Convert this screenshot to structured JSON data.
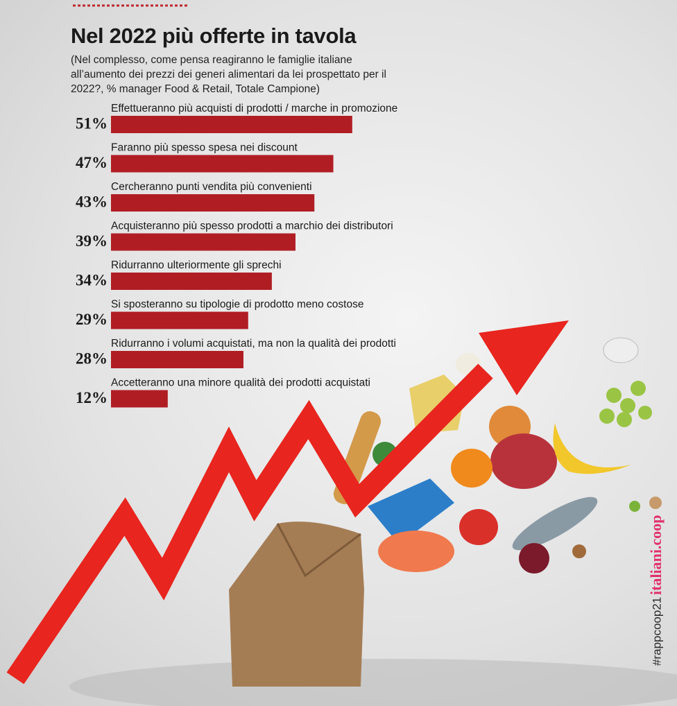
{
  "chart_data": {
    "type": "bar",
    "orientation": "horizontal",
    "title": "Nel 2022 più offerte in tavola",
    "subtitle": "(Nel complesso, come pensa reagiranno le famiglie italiane all’aumento dei prezzi dei generi alimentari da lei prospettato per il 2022?, % manager Food & Retail, Totale Campione)",
    "categories": [
      "Effettueranno più acquisti di prodotti / marche in promozione",
      "Faranno più spesso spesa nei discount",
      "Cercheranno punti vendita più convenienti",
      "Acquisteranno più spesso prodotti a marchio dei distributori",
      "Ridurranno ulteriormente gli sprechi",
      "Si sposteranno su tipologie di prodotto meno costose",
      "Ridurranno i volumi acquistati, ma non la qualità dei prodotti",
      "Accetteranno una minore qualità dei prodotti acquistati"
    ],
    "values": [
      51,
      47,
      43,
      39,
      34,
      29,
      28,
      12
    ],
    "value_labels": [
      "51%",
      "47%",
      "43%",
      "39%",
      "34%",
      "29%",
      "28%",
      "12%"
    ],
    "color": "#b01e24",
    "hashtag": "#rappcoop21",
    "website": "italiani.coop"
  }
}
